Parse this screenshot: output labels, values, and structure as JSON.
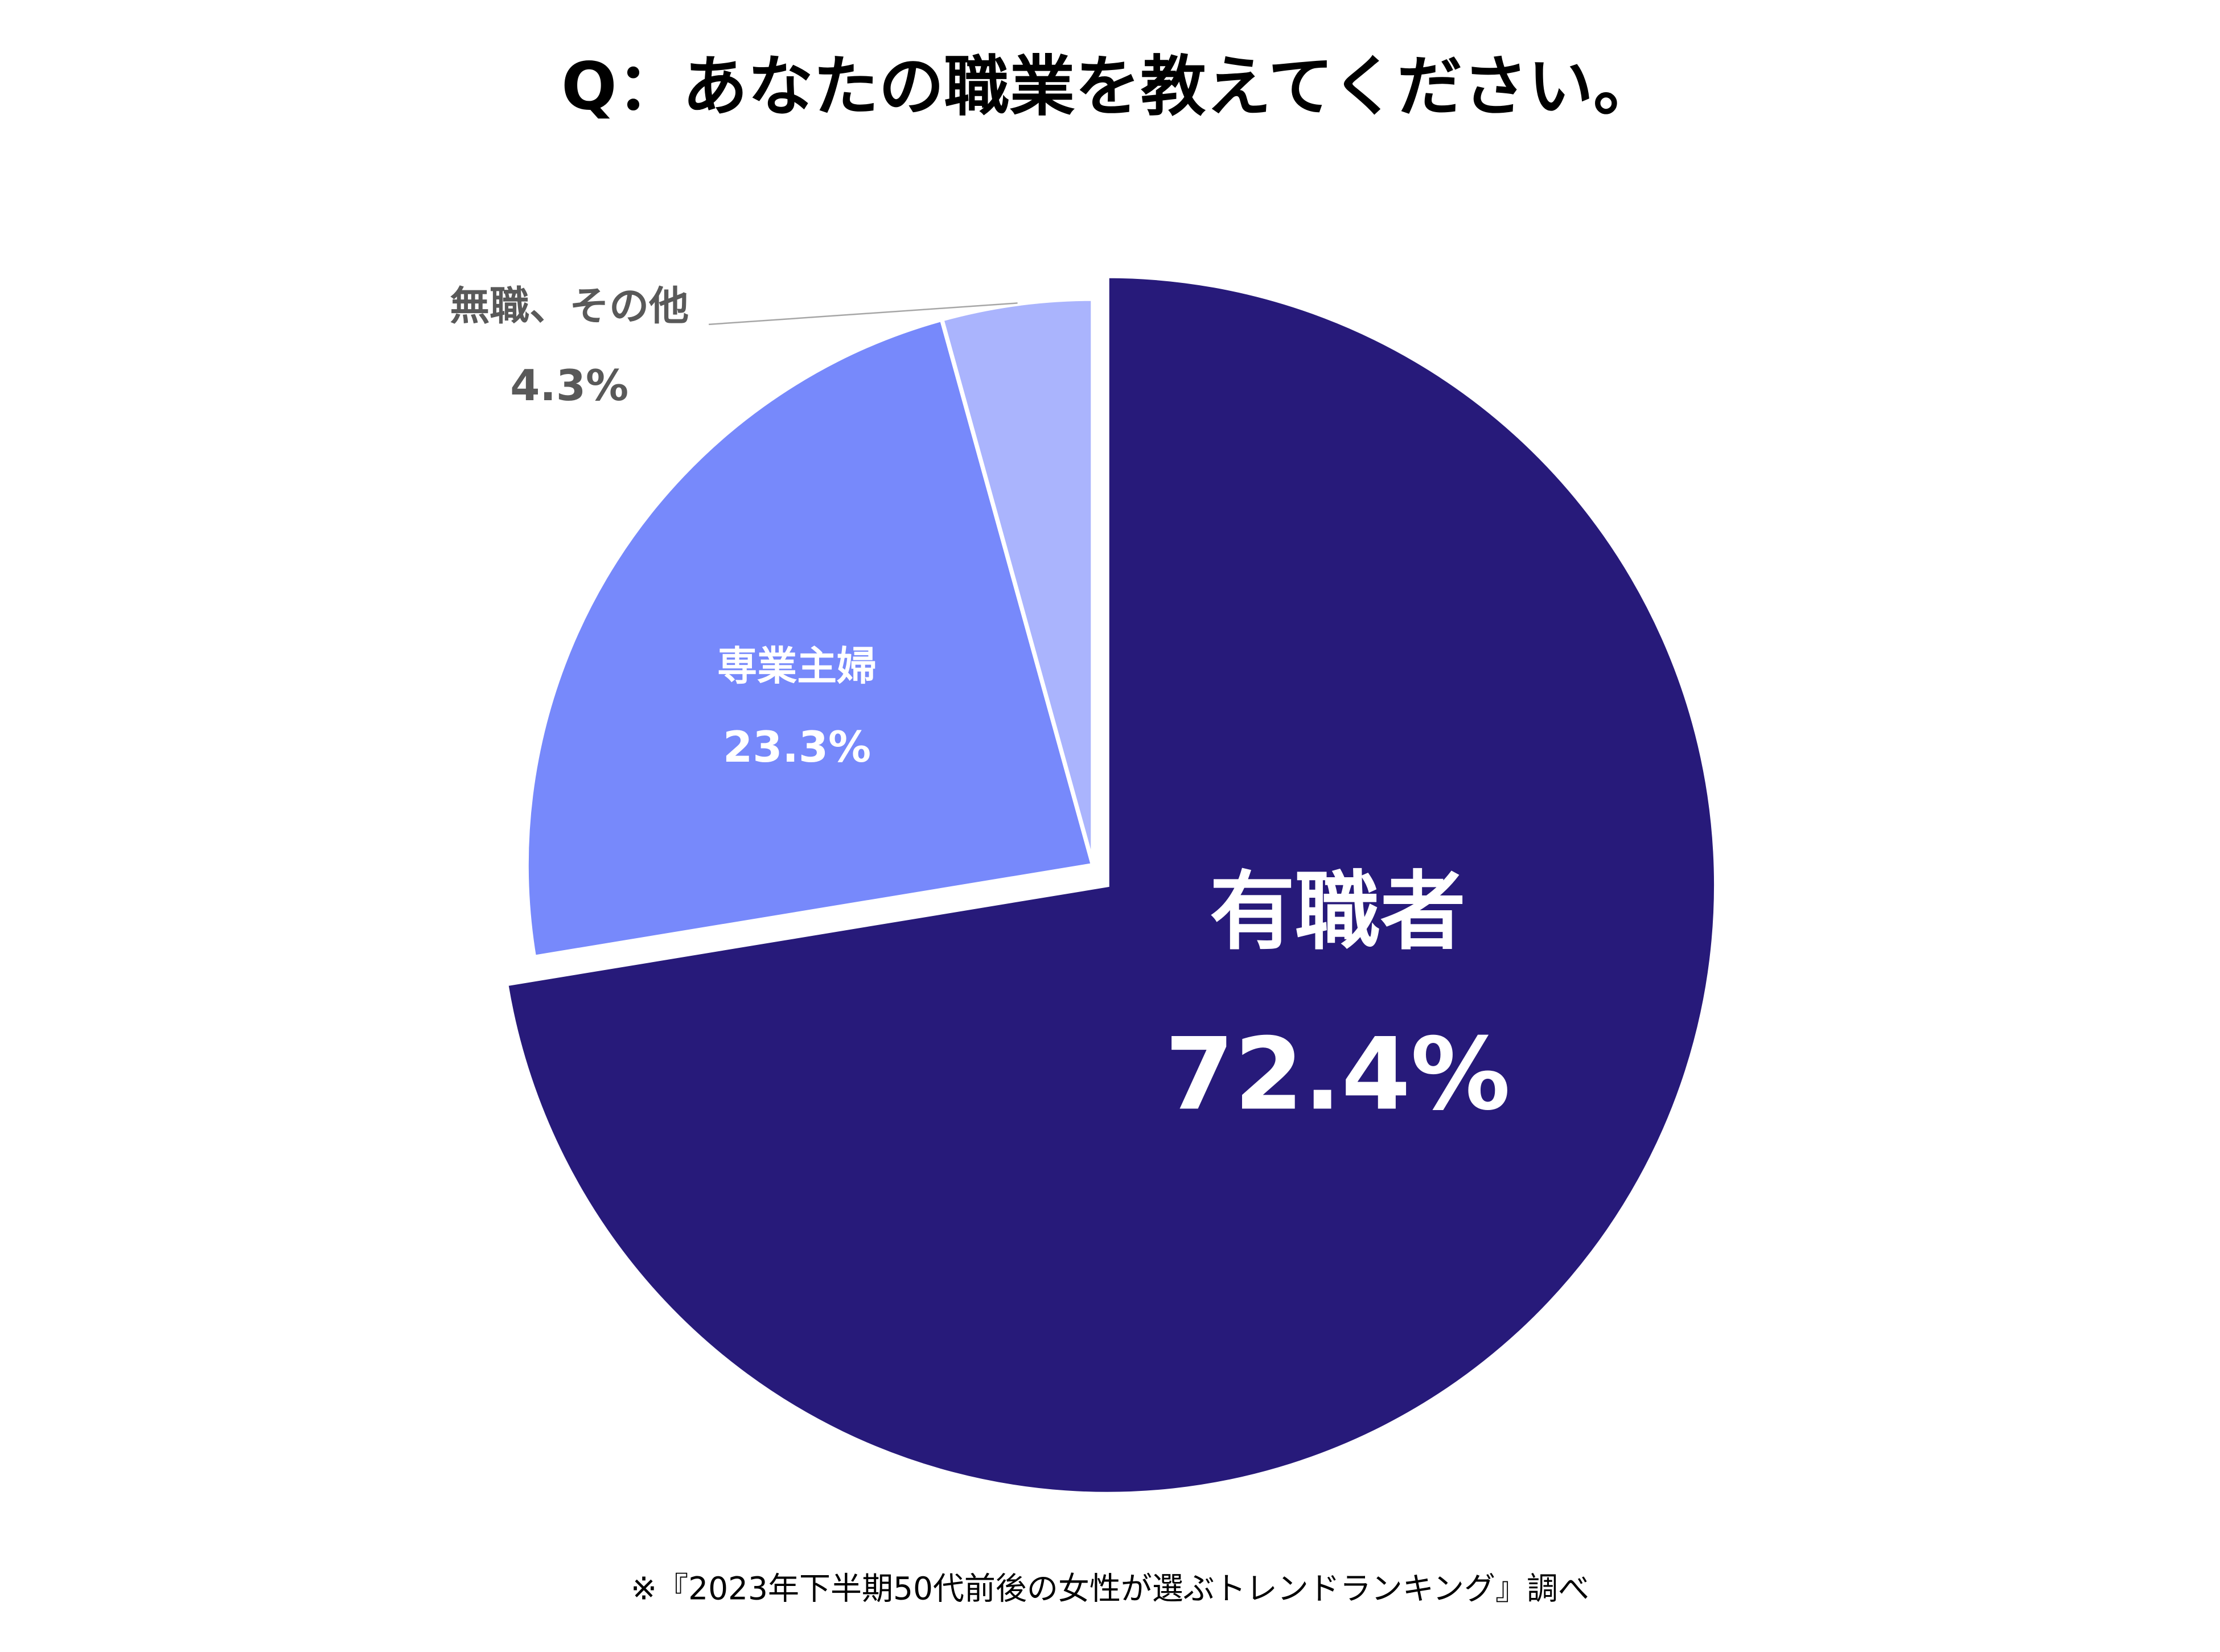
{
  "chart_data": {
    "type": "pie",
    "title": "Q：あなたの職業を教えてください。",
    "categories": [
      "有職者",
      "専業主婦",
      "無職、その他"
    ],
    "values": [
      72.4,
      23.3,
      4.3
    ],
    "value_labels": [
      "72.4%",
      "23.3%",
      "4.3%"
    ],
    "colors": [
      "#271a7a",
      "#7789fb",
      "#aab4fd"
    ],
    "note": "※『2023年下半期50代前後の女性が選ぶトレンドランキング』調べ"
  }
}
